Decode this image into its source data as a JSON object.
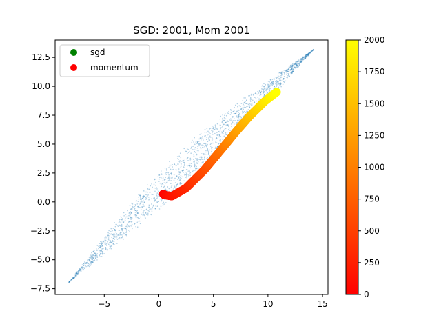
{
  "chart_data": {
    "type": "scatter",
    "title": "SGD: 2001, Mom 2001",
    "xlabel": "",
    "ylabel": "",
    "xlim": [
      -9.5,
      15.5
    ],
    "ylim": [
      -8.0,
      14.0
    ],
    "x_ticks": [
      -5,
      0,
      5,
      10,
      15
    ],
    "x_tick_labels": [
      "−5",
      "0",
      "5",
      "10",
      "15"
    ],
    "y_ticks": [
      -7.5,
      -5.0,
      -2.5,
      0.0,
      2.5,
      5.0,
      7.5,
      10.0,
      12.5
    ],
    "y_tick_labels": [
      "−7.5",
      "−5.0",
      "−2.5",
      "0.0",
      "2.5",
      "5.0",
      "7.5",
      "10.0",
      "12.5"
    ],
    "grid": false,
    "legend": {
      "placement": "upper-left",
      "entries": [
        {
          "label": "sgd",
          "color": "#008000"
        },
        {
          "label": "momentum",
          "color": "#ff0000"
        }
      ]
    },
    "series": [
      {
        "name": "sgd",
        "color": "#1f77b4",
        "marker_alpha": 0.35,
        "n_points": 2001,
        "approx_path": {
          "start": [
            -8.3,
            -7.0
          ],
          "end": [
            14.2,
            13.2
          ],
          "spread": 1.2
        }
      },
      {
        "name": "momentum",
        "colormap": "autumn",
        "n_points": 2001,
        "path": [
          {
            "step": 0,
            "x": 0.4,
            "y": 0.7
          },
          {
            "step": 40,
            "x": 0.5,
            "y": 0.6
          },
          {
            "step": 150,
            "x": 1.2,
            "y": 0.5
          },
          {
            "step": 300,
            "x": 2.5,
            "y": 1.2
          },
          {
            "step": 600,
            "x": 4.2,
            "y": 2.8
          },
          {
            "step": 900,
            "x": 5.7,
            "y": 4.5
          },
          {
            "step": 1200,
            "x": 7.0,
            "y": 6.0
          },
          {
            "step": 1500,
            "x": 8.3,
            "y": 7.4
          },
          {
            "step": 1800,
            "x": 9.7,
            "y": 8.7
          },
          {
            "step": 2000,
            "x": 10.8,
            "y": 9.5
          }
        ]
      }
    ],
    "colorbar": {
      "colormap": "autumn",
      "range": [
        0,
        2000
      ],
      "ticks": [
        0,
        250,
        500,
        750,
        1000,
        1250,
        1500,
        1750,
        2000
      ],
      "tick_labels": [
        "0",
        "250",
        "500",
        "750",
        "1000",
        "1250",
        "1500",
        "1750",
        "2000"
      ]
    }
  }
}
